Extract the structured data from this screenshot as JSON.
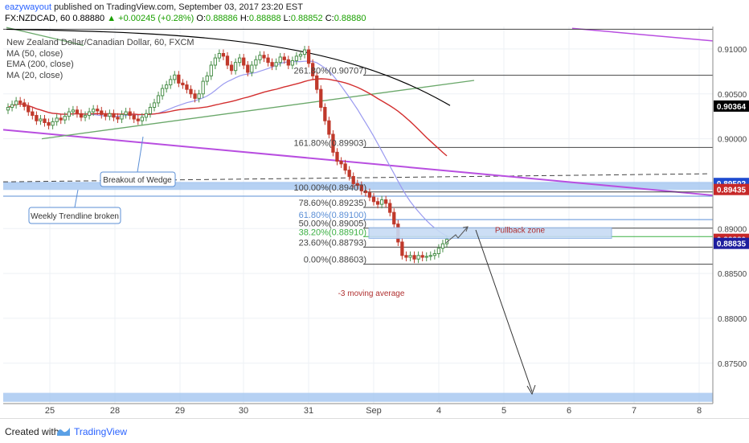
{
  "header": {
    "user": "eazywayout",
    "published": "published on TradingView.com, September 03, 2017 23:20 EST",
    "symbol": "FX:NZDCAD, 60",
    "price": "0.88880",
    "change": "+0.00245 (+0.28%)",
    "open_label": "O:",
    "open": "0.88886",
    "high_label": "H:",
    "high": "0.88888",
    "low_label": "L:",
    "low": "0.88852",
    "close_label": "C:",
    "close": "0.88880"
  },
  "legend": {
    "title": "New Zealand Dollar/Canadian Dollar, 60, FXCM",
    "ma50": "MA (50, close)",
    "ema200": "EMA (200, close)",
    "ma20": "MA (20, close)"
  },
  "footer": {
    "created": "Created with",
    "brand": "TradingView"
  },
  "colors": {
    "up_candle": "#4a8f4a",
    "down_candle": "#c0392b",
    "ma50": "#d32f2f",
    "ema200": "#000000",
    "ma20": "#9a9af0",
    "trendline": "#b84ee0",
    "wedge": "#6aa86a",
    "zone": "#9dc1ef",
    "accent": "#2962ff"
  },
  "chart_data": {
    "type": "candlestick",
    "title": "",
    "symbol": "NZDCAD",
    "timeframe": "60",
    "x_ticks": [
      "25",
      "28",
      "29",
      "30",
      "31",
      "Sep",
      "4",
      "5",
      "6",
      "7",
      "8"
    ],
    "y_ticks": [
      "0.91000",
      "0.90500",
      "0.90000",
      "0.89500",
      "0.89000",
      "0.88500",
      "0.88000",
      "0.87500"
    ],
    "ylim": [
      0.8705,
      0.9125
    ],
    "price_labels": [
      {
        "value": "0.90364",
        "price": 0.90364,
        "bg": "#000000"
      },
      {
        "value": "0.89502",
        "price": 0.89502,
        "bg": "#1e4bd0"
      },
      {
        "value": "0.89435",
        "price": 0.89435,
        "bg": "#c62828"
      },
      {
        "value": "0.88880",
        "price": 0.8888,
        "bg": "#c62828"
      },
      {
        "value": "0.88835",
        "price": 0.88835,
        "bg": "#1e1e9e"
      }
    ],
    "fib_levels": [
      {
        "label": "261.80%(0.90707)",
        "price": 0.90707
      },
      {
        "label": "161.80%(0.89903)",
        "price": 0.89903
      },
      {
        "label": "100.00%(0.89407)",
        "price": 0.89407
      },
      {
        "label": "78.60%(0.89235)",
        "price": 0.89235
      },
      {
        "label": "61.80%(0.89100)",
        "price": 0.891
      },
      {
        "label": "50.00%(0.89005)",
        "price": 0.89005
      },
      {
        "label": "38.20%(0.88910)",
        "price": 0.8891
      },
      {
        "label": "23.60%(0.88793)",
        "price": 0.88793
      },
      {
        "label": "0.00%(0.88603)",
        "price": 0.88603
      }
    ],
    "annotations": {
      "wedge": "Breakout of Wedge",
      "trendline": "Weekly Trendline broken",
      "pullback": "Pullback zone",
      "ma_note": "-3 moving average"
    },
    "closes": [
      0.9035,
      0.9038,
      0.9042,
      0.904,
      0.9036,
      0.903,
      0.9026,
      0.902,
      0.9022,
      0.9018,
      0.9015,
      0.9019,
      0.9023,
      0.9021,
      0.9025,
      0.903,
      0.9032,
      0.9028,
      0.9024,
      0.9026,
      0.903,
      0.9033,
      0.9031,
      0.9027,
      0.9025,
      0.9028,
      0.9024,
      0.9022,
      0.9027,
      0.903,
      0.9026,
      0.9022,
      0.902,
      0.9024,
      0.9028,
      0.9035,
      0.904,
      0.9048,
      0.9056,
      0.906,
      0.9066,
      0.9071,
      0.9062,
      0.906,
      0.9055,
      0.905,
      0.9045,
      0.905,
      0.9064,
      0.907,
      0.9082,
      0.909,
      0.9095,
      0.9092,
      0.9082,
      0.9076,
      0.9085,
      0.909,
      0.9082,
      0.9074,
      0.9082,
      0.9088,
      0.9093,
      0.909,
      0.9085,
      0.9081,
      0.9085,
      0.9091,
      0.9088,
      0.9082,
      0.9087,
      0.9092,
      0.9094,
      0.9099,
      0.9084,
      0.907,
      0.9055,
      0.9035,
      0.902,
      0.9005,
      0.8985,
      0.8975,
      0.8972,
      0.8965,
      0.8958,
      0.895,
      0.8948,
      0.8942,
      0.894,
      0.8935,
      0.893,
      0.8927,
      0.8932,
      0.8928,
      0.8918,
      0.8905,
      0.8885,
      0.887,
      0.8868,
      0.887,
      0.8866,
      0.887,
      0.8868,
      0.8869,
      0.887,
      0.8872,
      0.8878,
      0.8883,
      0.8888
    ]
  }
}
